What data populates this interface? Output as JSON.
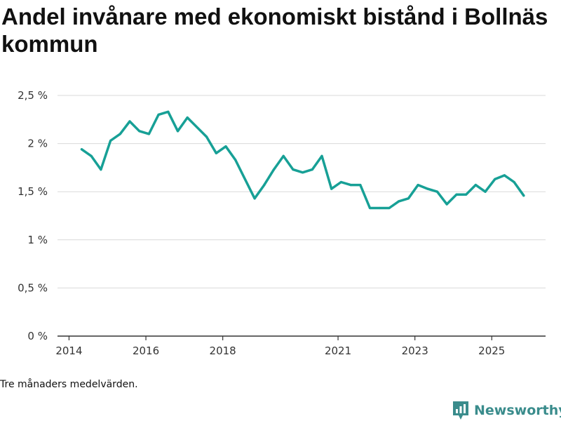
{
  "chart_data": {
    "type": "line",
    "title": "Andel invånare med ekonomiskt bistånd i Bollnäs kommun",
    "xlabel": "",
    "ylabel": "",
    "ylim": [
      0,
      2.5
    ],
    "yticks": [
      {
        "value": 0,
        "label": "0 %"
      },
      {
        "value": 0.5,
        "label": "0,5 %"
      },
      {
        "value": 1,
        "label": "1 %"
      },
      {
        "value": 1.5,
        "label": "1,5 %"
      },
      {
        "value": 2,
        "label": "2 %"
      },
      {
        "value": 2.5,
        "label": "2,5 %"
      }
    ],
    "xlim": [
      2013.7,
      2026.4
    ],
    "xticks": [
      {
        "value": 2014,
        "label": "2014"
      },
      {
        "value": 2016,
        "label": "2016"
      },
      {
        "value": 2018,
        "label": "2018"
      },
      {
        "value": 2021,
        "label": "2021"
      },
      {
        "value": 2023,
        "label": "2023"
      },
      {
        "value": 2025,
        "label": "2025"
      }
    ],
    "grid": true,
    "series": [
      {
        "name": "Andel invånare med ekonomiskt bistånd",
        "color": "#17a096",
        "x": [
          2014.33,
          2014.58,
          2014.83,
          2015.08,
          2015.33,
          2015.58,
          2015.83,
          2016.08,
          2016.33,
          2016.58,
          2016.83,
          2017.08,
          2017.33,
          2017.58,
          2017.83,
          2018.08,
          2018.33,
          2018.58,
          2018.83,
          2019.08,
          2019.33,
          2019.58,
          2019.83,
          2020.08,
          2020.33,
          2020.58,
          2020.83,
          2021.08,
          2021.33,
          2021.58,
          2021.83,
          2022.08,
          2022.33,
          2022.58,
          2022.83,
          2023.08,
          2023.33,
          2023.58,
          2023.83,
          2024.08,
          2024.33,
          2024.58,
          2024.83,
          2025.08,
          2025.33,
          2025.58,
          2025.83
        ],
        "values": [
          1.94,
          1.87,
          1.73,
          2.03,
          2.1,
          2.23,
          2.13,
          2.1,
          2.3,
          2.33,
          2.13,
          2.27,
          2.17,
          2.07,
          1.9,
          1.97,
          1.83,
          1.63,
          1.43,
          1.57,
          1.73,
          1.87,
          1.73,
          1.7,
          1.73,
          1.87,
          1.53,
          1.6,
          1.57,
          1.57,
          1.33,
          1.33,
          1.33,
          1.4,
          1.43,
          1.57,
          1.53,
          1.5,
          1.37,
          1.47,
          1.47,
          1.57,
          1.5,
          1.63,
          1.67,
          1.6,
          1.46
        ]
      }
    ]
  },
  "footnote": "Tre månaders medelvärden.",
  "brand": {
    "name": "Newsworthy",
    "color": "#3a8c8c",
    "icon": "newsworthy-logo-icon"
  }
}
